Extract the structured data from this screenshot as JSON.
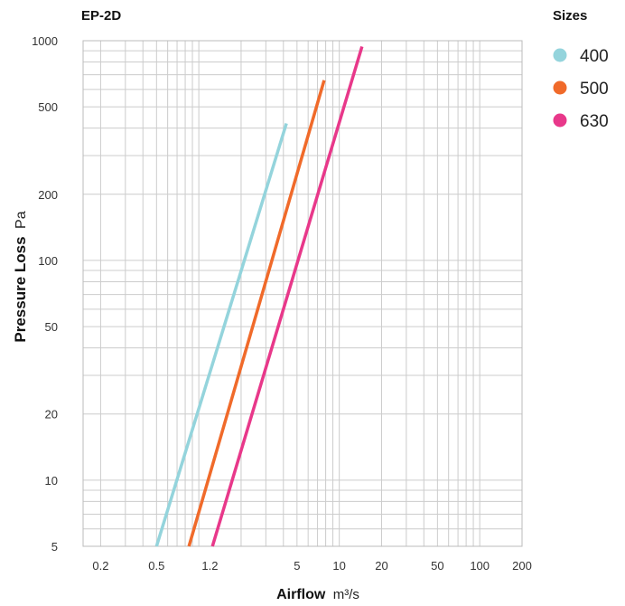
{
  "chart_data": {
    "type": "line",
    "title": "EP-2D",
    "xlabel": {
      "bold": "Airflow",
      "unit": "m³/s"
    },
    "ylabel": {
      "bold": "Pressure Loss",
      "unit": "Pa"
    },
    "x_scale": "log",
    "y_scale": "log",
    "xlim": [
      0.15,
      200
    ],
    "ylim": [
      5,
      1000
    ],
    "grid": true,
    "x_ticks": [
      0.2,
      0.5,
      1.2,
      5,
      10,
      20,
      50,
      100,
      200
    ],
    "x_tick_labels": [
      "0.2",
      "0.5",
      "1.2",
      "5",
      "10",
      "20",
      "50",
      "100",
      "200"
    ],
    "y_ticks": [
      5,
      10,
      20,
      50,
      100,
      200,
      500,
      1000
    ],
    "y_tick_labels": [
      "5",
      "10",
      "20",
      "50",
      "100",
      "200",
      "500",
      "1000"
    ],
    "legend": {
      "title": "Sizes",
      "position": "top-right"
    },
    "series": [
      {
        "name": "400",
        "color": "#94d4dc",
        "x": [
          0.5,
          4.2
        ],
        "y": [
          5,
          420
        ]
      },
      {
        "name": "500",
        "color": "#f06a2a",
        "x": [
          0.85,
          7.8
        ],
        "y": [
          5,
          660
        ]
      },
      {
        "name": "630",
        "color": "#e8388a",
        "x": [
          1.25,
          14.5
        ],
        "y": [
          5,
          940
        ]
      }
    ]
  }
}
